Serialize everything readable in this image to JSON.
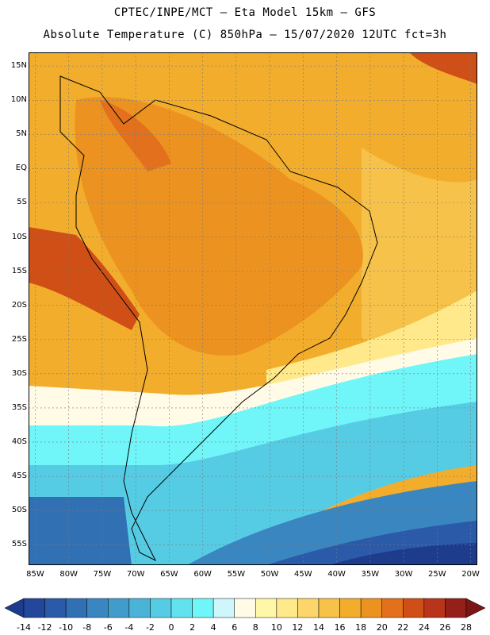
{
  "header": {
    "line1": "CPTEC/INPE/MCT –  Eta Model 15km – GFS",
    "line2": "Absolute Temperature (C) 850hPa – 15/07/2020 12UTC fct=3h"
  },
  "map": {
    "lon_range": [
      -86,
      -19
    ],
    "lat_range": [
      -58,
      17
    ],
    "lat_ticks": [
      {
        "value": 15,
        "label": "15N"
      },
      {
        "value": 10,
        "label": "10N"
      },
      {
        "value": 5,
        "label": "5N"
      },
      {
        "value": 0,
        "label": "EQ"
      },
      {
        "value": -5,
        "label": "5S"
      },
      {
        "value": -10,
        "label": "10S"
      },
      {
        "value": -15,
        "label": "15S"
      },
      {
        "value": -20,
        "label": "20S"
      },
      {
        "value": -25,
        "label": "25S"
      },
      {
        "value": -30,
        "label": "30S"
      },
      {
        "value": -35,
        "label": "35S"
      },
      {
        "value": -40,
        "label": "40S"
      },
      {
        "value": -45,
        "label": "45S"
      },
      {
        "value": -50,
        "label": "50S"
      },
      {
        "value": -55,
        "label": "55S"
      }
    ],
    "lon_ticks": [
      {
        "value": -85,
        "label": "85W"
      },
      {
        "value": -80,
        "label": "80W"
      },
      {
        "value": -75,
        "label": "75W"
      },
      {
        "value": -70,
        "label": "70W"
      },
      {
        "value": -65,
        "label": "65W"
      },
      {
        "value": -60,
        "label": "60W"
      },
      {
        "value": -55,
        "label": "55W"
      },
      {
        "value": -50,
        "label": "50W"
      },
      {
        "value": -45,
        "label": "45W"
      },
      {
        "value": -40,
        "label": "40W"
      },
      {
        "value": -35,
        "label": "35W"
      },
      {
        "value": -30,
        "label": "30W"
      },
      {
        "value": -25,
        "label": "25W"
      },
      {
        "value": -20,
        "label": "20W"
      }
    ],
    "grid": true
  },
  "colorbar": {
    "levels": [
      -14,
      -12,
      -10,
      -8,
      -6,
      -4,
      -2,
      0,
      2,
      4,
      6,
      8,
      10,
      12,
      14,
      16,
      18,
      20,
      22,
      24,
      26,
      28
    ],
    "labels": [
      "-14",
      "-12",
      "-10",
      "-8",
      "-6",
      "-4",
      "-2",
      "0",
      "2",
      "4",
      "6",
      "8",
      "10",
      "12",
      "14",
      "16",
      "18",
      "20",
      "22",
      "24",
      "26",
      "28"
    ],
    "colors": [
      "#1e3c8c",
      "#22479b",
      "#2a5aa8",
      "#3270b4",
      "#3a86c0",
      "#429cca",
      "#4ab4d8",
      "#56cce4",
      "#62e2ee",
      "#70f6f8",
      "#cff6fa",
      "#fffbe6",
      "#fff7a8",
      "#ffe98a",
      "#fcd66a",
      "#f7c24a",
      "#f3ad2c",
      "#ec9220",
      "#e2701c",
      "#cf4f16",
      "#b8341a",
      "#95201a",
      "#7a1616"
    ]
  }
}
